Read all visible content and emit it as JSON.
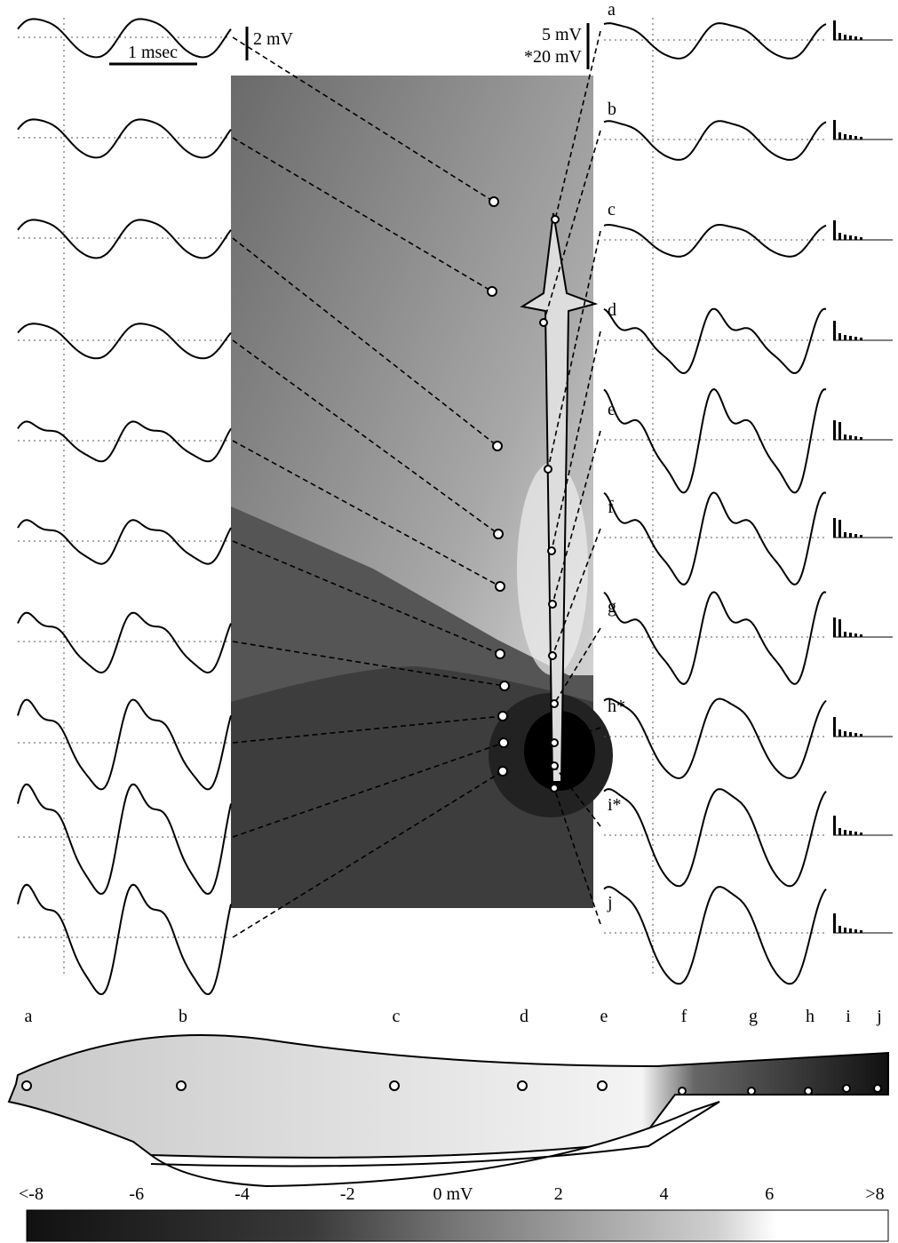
{
  "scale_bars": {
    "left_voltage": "2 mV",
    "time": "1 msec",
    "right_voltage": "5 mV",
    "right_voltage_alt": "*20 mV"
  },
  "right_traces": {
    "labels": [
      "a",
      "b",
      "c",
      "d",
      "e",
      "f",
      "g",
      "h*",
      "i*",
      "j"
    ]
  },
  "bottom_map": {
    "labels": [
      "a",
      "b",
      "c",
      "d",
      "e",
      "f",
      "g",
      "h",
      "i",
      "j"
    ]
  },
  "colorbar": {
    "labels": [
      "<-8",
      "-6",
      "-4",
      "-2",
      "0 mV",
      "2",
      "4",
      "6",
      ">8"
    ]
  }
}
